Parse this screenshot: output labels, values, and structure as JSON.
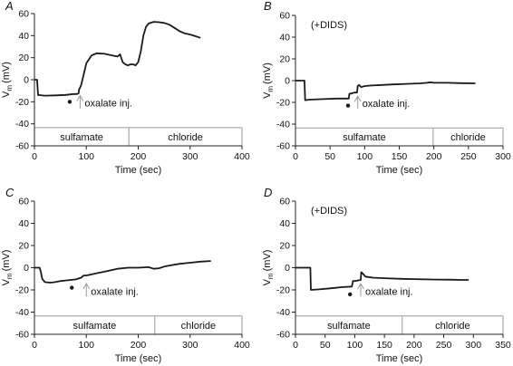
{
  "colors": {
    "trace": "#1a1a1a",
    "axis": "#222222",
    "arrow": "#9a9a9a",
    "bar_border": "#9a9a9a"
  },
  "chart_data": [
    {
      "type": "line",
      "panel": "A",
      "note": "",
      "ylabel": "V",
      "ylabel_sub": "m",
      "ylabel_unit": "(mV)",
      "xlabel": "Time (sec)",
      "xlim": [
        0,
        400
      ],
      "ylim": [
        -60,
        60
      ],
      "xticks": [
        0,
        100,
        200,
        300,
        400
      ],
      "yticks": [
        -60,
        -40,
        -20,
        0,
        20,
        40,
        60
      ],
      "series": [
        {
          "x": [
            0,
            5,
            7,
            10,
            20,
            40,
            60,
            75,
            82,
            85,
            86,
            90,
            95,
            100,
            110,
            120,
            135,
            150,
            160,
            165,
            170,
            175,
            180,
            185,
            190,
            195,
            200,
            205,
            210,
            215,
            220,
            230,
            240,
            250,
            260,
            270,
            280,
            290,
            300,
            310,
            320
          ],
          "y": [
            0,
            0,
            -14,
            -14,
            -14.5,
            -14.2,
            -13.8,
            -13,
            -13,
            -12.5,
            -9,
            -5,
            5,
            15,
            22,
            24,
            23.5,
            22,
            21,
            23,
            16,
            14,
            13,
            14,
            14,
            13,
            16,
            26,
            40,
            48,
            51,
            52.5,
            52.2,
            51.5,
            50,
            47,
            44,
            42,
            41,
            39.5,
            38
          ]
        }
      ],
      "dot": {
        "x": 68,
        "y": -20
      },
      "arrow_x": 88,
      "annotation": "oxalate inj.",
      "solutions": [
        {
          "label": "sulfamate",
          "start": 0,
          "end": 182
        },
        {
          "label": "chloride",
          "start": 182,
          "end": 400
        }
      ]
    },
    {
      "type": "line",
      "panel": "B",
      "note": "(+DIDS)",
      "ylabel": "V",
      "ylabel_sub": "m",
      "ylabel_unit": "(mV)",
      "xlabel": "Time (sec)",
      "xlim": [
        0,
        300
      ],
      "ylim": [
        -60,
        60
      ],
      "xticks": [
        0,
        50,
        100,
        150,
        200,
        250,
        300
      ],
      "yticks": [
        -60,
        -40,
        -20,
        0,
        20,
        40,
        60
      ],
      "series": [
        {
          "x": [
            0,
            13,
            14,
            20,
            40,
            60,
            77,
            78,
            80,
            85,
            89,
            90,
            92,
            95,
            100,
            110,
            125,
            140,
            160,
            180,
            190,
            195,
            200,
            220,
            240,
            260
          ],
          "y": [
            0,
            0,
            -18,
            -17.5,
            -17,
            -16.5,
            -16.5,
            -12,
            -12,
            -11,
            -11,
            -5,
            -4,
            -6,
            -5,
            -4.5,
            -4,
            -3.5,
            -3,
            -2.5,
            -2,
            -1.5,
            -2,
            -2,
            -2.3,
            -2.5
          ]
        }
      ],
      "dot": {
        "x": 76,
        "y": -23
      },
      "arrow_x": 90,
      "annotation": "oxalate inj.",
      "solutions": [
        {
          "label": "sulfamate",
          "start": 0,
          "end": 199
        },
        {
          "label": "chloride",
          "start": 199,
          "end": 300
        }
      ]
    },
    {
      "type": "line",
      "panel": "C",
      "note": "",
      "ylabel": "V",
      "ylabel_sub": "m",
      "ylabel_unit": "(mV)",
      "xlabel": "Time (sec)",
      "xlim": [
        0,
        400
      ],
      "ylim": [
        -60,
        60
      ],
      "xticks": [
        0,
        100,
        200,
        300,
        400
      ],
      "yticks": [
        -60,
        -40,
        -20,
        0,
        20,
        40,
        60
      ],
      "series": [
        {
          "x": [
            0,
            10,
            12,
            15,
            20,
            30,
            40,
            50,
            60,
            70,
            80,
            90,
            95,
            100,
            110,
            120,
            140,
            160,
            180,
            200,
            220,
            230,
            240,
            250,
            260,
            280,
            300,
            320,
            340
          ],
          "y": [
            0,
            0,
            -3,
            -10,
            -13,
            -13.5,
            -13,
            -12,
            -11.5,
            -11,
            -10.5,
            -9,
            -7,
            -7,
            -6,
            -5,
            -3,
            -1,
            0,
            0,
            0.5,
            -1,
            -0.5,
            1,
            2,
            3.5,
            4.5,
            5.5,
            6
          ]
        }
      ],
      "dot": {
        "x": 72,
        "y": -18
      },
      "arrow_x": 100,
      "annotation": "oxalate inj.",
      "solutions": [
        {
          "label": "sulfamate",
          "start": 0,
          "end": 232
        },
        {
          "label": "chloride",
          "start": 232,
          "end": 400
        }
      ]
    },
    {
      "type": "line",
      "panel": "D",
      "note": "(+DIDS)",
      "ylabel": "V",
      "ylabel_sub": "m",
      "ylabel_unit": "(mV)",
      "xlabel": "Time (sec)",
      "xlim": [
        0,
        350
      ],
      "ylim": [
        -60,
        60
      ],
      "xticks": [
        0,
        50,
        100,
        150,
        200,
        250,
        300,
        350
      ],
      "yticks": [
        -60,
        -40,
        -20,
        0,
        20,
        40,
        60
      ],
      "series": [
        {
          "x": [
            0,
            25,
            26,
            40,
            60,
            80,
            95,
            97,
            100,
            105,
            110,
            111,
            113,
            118,
            130,
            150,
            180,
            200,
            220,
            240,
            260,
            280,
            292
          ],
          "y": [
            0,
            0,
            -20,
            -19.5,
            -18.5,
            -17.5,
            -17,
            -12,
            -12,
            -11.5,
            -11,
            -4,
            -5,
            -8,
            -9,
            -9.5,
            -10,
            -10.3,
            -10.5,
            -10.7,
            -10.8,
            -11,
            -11
          ]
        }
      ],
      "dot": {
        "x": 92,
        "y": -24
      },
      "arrow_x": 110,
      "annotation": "oxalate inj.",
      "solutions": [
        {
          "label": "sulfamate",
          "start": 0,
          "end": 180
        },
        {
          "label": "chloride",
          "start": 180,
          "end": 350
        }
      ]
    }
  ]
}
